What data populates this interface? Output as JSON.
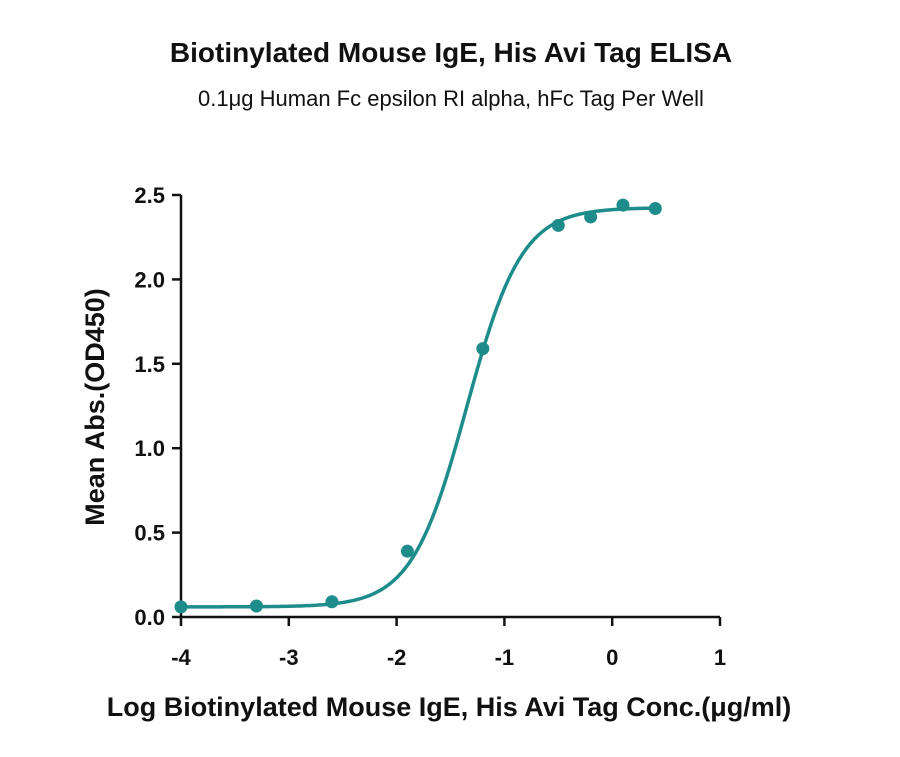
{
  "chart_data": {
    "type": "scatter",
    "title": "Biotinylated Mouse IgE, His Avi Tag ELISA",
    "subtitle": "0.1μg Human Fc epsilon RI alpha, hFc Tag Per Well",
    "xlabel": "Log Biotinylated Mouse IgE, His Avi Tag Conc.(μg/ml)",
    "ylabel": "Mean Abs.(OD450)",
    "xlim": [
      -4,
      1
    ],
    "ylim": [
      0,
      2.5
    ],
    "x_ticks": [
      "-4",
      "-3",
      "-2",
      "-1",
      "0",
      "1"
    ],
    "y_ticks": [
      "0.0",
      "0.5",
      "1.0",
      "1.5",
      "2.0",
      "2.5"
    ],
    "grid": false,
    "series": [
      {
        "points": [
          {
            "x": -4.0,
            "y": 0.06
          },
          {
            "x": -3.3,
            "y": 0.065
          },
          {
            "x": -2.6,
            "y": 0.09
          },
          {
            "x": -1.9,
            "y": 0.39
          },
          {
            "x": -1.2,
            "y": 1.59
          },
          {
            "x": -0.5,
            "y": 2.32
          },
          {
            "x": -0.2,
            "y": 2.37
          },
          {
            "x": 0.1,
            "y": 2.44
          },
          {
            "x": 0.4,
            "y": 2.42
          }
        ],
        "fit": {
          "model": "4PL",
          "bottom": 0.06,
          "top": 2.425,
          "log_ec50": -1.35,
          "hill": 1.7,
          "x_range": [
            -4.0,
            0.4
          ]
        }
      }
    ],
    "color": "#1f8c8c"
  }
}
